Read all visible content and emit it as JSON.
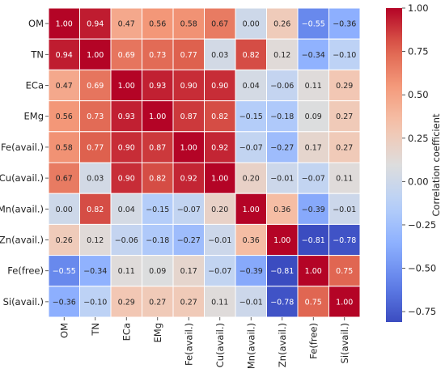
{
  "chart_data": {
    "type": "heatmap",
    "rows": [
      "OM",
      "TN",
      "ECa",
      "EMg",
      "Fe(avail.)",
      "Cu(avail.)",
      "Mn(avail.)",
      "Zn(avail.)",
      "Fe(free)",
      "Si(avail.)"
    ],
    "columns": [
      "OM",
      "TN",
      "ECa",
      "EMg",
      "Fe(avail.)",
      "Cu(avail.)",
      "Mn(avail.)",
      "Zn(avail.)",
      "Fe(free)",
      "Si(avail.)"
    ],
    "values": [
      [
        1.0,
        0.94,
        0.47,
        0.56,
        0.58,
        0.67,
        0.0,
        0.26,
        -0.55,
        -0.36
      ],
      [
        0.94,
        1.0,
        0.69,
        0.73,
        0.77,
        0.03,
        0.82,
        0.12,
        -0.34,
        -0.1
      ],
      [
        0.47,
        0.69,
        1.0,
        0.93,
        0.9,
        0.9,
        0.04,
        -0.06,
        0.11,
        0.29
      ],
      [
        0.56,
        0.73,
        0.93,
        1.0,
        0.87,
        0.82,
        -0.15,
        -0.18,
        0.09,
        0.27
      ],
      [
        0.58,
        0.77,
        0.9,
        0.87,
        1.0,
        0.92,
        -0.07,
        -0.27,
        0.17,
        0.27
      ],
      [
        0.67,
        0.03,
        0.9,
        0.82,
        0.92,
        1.0,
        0.2,
        -0.01,
        -0.07,
        0.11
      ],
      [
        0.0,
        0.82,
        0.04,
        -0.15,
        -0.07,
        0.2,
        1.0,
        0.36,
        -0.39,
        -0.01
      ],
      [
        0.26,
        0.12,
        -0.06,
        -0.18,
        -0.27,
        -0.01,
        0.36,
        1.0,
        -0.81,
        -0.78
      ],
      [
        -0.55,
        -0.34,
        0.11,
        0.09,
        0.17,
        -0.07,
        -0.39,
        -0.81,
        1.0,
        0.75
      ],
      [
        -0.36,
        -0.1,
        0.29,
        0.27,
        0.27,
        0.11,
        -0.01,
        -0.78,
        0.75,
        1.0
      ]
    ],
    "colormap": "coolwarm",
    "color_range": [
      -0.81,
      1.0
    ],
    "colorbar": {
      "label": "Correlation coefficient",
      "ticks": [
        1.0,
        0.75,
        0.5,
        0.25,
        0.0,
        -0.25,
        -0.5,
        -0.75
      ],
      "tick_labels": [
        "1.00",
        "0.75",
        "0.50",
        "0.25",
        "0.00",
        "−0.25",
        "−0.50",
        "−0.75"
      ]
    },
    "value_format": "2 decimals"
  }
}
